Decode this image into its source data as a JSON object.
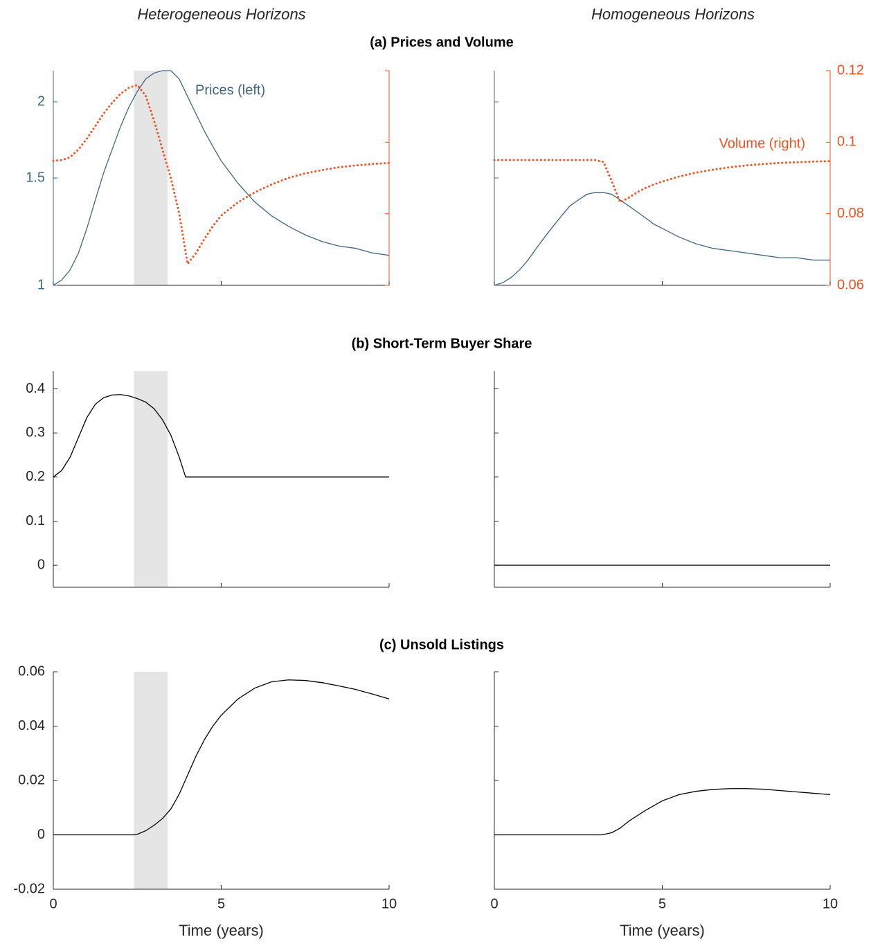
{
  "column_titles": [
    "Heterogeneous Horizons",
    "Homogeneous Horizons"
  ],
  "row_titles": [
    "(a) Prices and Volume",
    "(b) Short-Term Buyer Share",
    "(c) Unsold Listings"
  ],
  "chart_data": [
    {
      "type": "line",
      "annotation": "Prices (left)",
      "yscale": "log",
      "x": [
        0,
        0.25,
        0.5,
        0.75,
        1,
        1.25,
        1.5,
        1.75,
        2,
        2.25,
        2.5,
        2.75,
        3,
        3.25,
        3.5,
        3.75,
        4,
        4.25,
        4.5,
        4.75,
        5,
        5.5,
        6,
        6.5,
        7,
        7.5,
        8,
        8.5,
        9,
        9.5,
        10
      ],
      "series": [
        {
          "name": "Prices",
          "color": "#3d6584",
          "style": "solid",
          "values": [
            1.0,
            1.02,
            1.06,
            1.13,
            1.24,
            1.38,
            1.53,
            1.67,
            1.82,
            1.96,
            2.08,
            2.18,
            2.23,
            2.25,
            2.25,
            2.18,
            2.04,
            1.91,
            1.79,
            1.69,
            1.6,
            1.47,
            1.37,
            1.3,
            1.25,
            1.21,
            1.18,
            1.16,
            1.15,
            1.13,
            1.12
          ]
        },
        {
          "name": "Volume",
          "color": "#f4511e",
          "style": "dotted",
          "axis": "y2",
          "values": [
            0.0948,
            0.095,
            0.0958,
            0.098,
            0.101,
            0.1045,
            0.108,
            0.111,
            0.1135,
            0.1152,
            0.116,
            0.113,
            0.106,
            0.098,
            0.09,
            0.08,
            0.066,
            0.069,
            0.073,
            0.0765,
            0.0795,
            0.0832,
            0.086,
            0.0882,
            0.09,
            0.0913,
            0.0922,
            0.093,
            0.0935,
            0.0939,
            0.0942
          ]
        }
      ],
      "xlim": [
        0,
        10
      ],
      "xticks": [
        0,
        5,
        10
      ],
      "xtick_labels": false,
      "ylim": [
        1,
        2.25
      ],
      "yticks": [
        1,
        1.5,
        2
      ],
      "ytick_labels": true,
      "y2lim": [
        0.06,
        0.12
      ],
      "y2ticks": [
        0.06,
        0.08,
        0.1,
        0.12
      ],
      "y2tick_labels": false,
      "shade": [
        2.4,
        3.4
      ],
      "shade_color": "#e5e5e5"
    },
    {
      "type": "line",
      "annotation": "Volume (right)",
      "yscale": "log",
      "x": [
        0,
        0.25,
        0.5,
        0.75,
        1,
        1.25,
        1.5,
        1.75,
        2,
        2.25,
        2.5,
        2.75,
        3,
        3.25,
        3.5,
        3.75,
        4,
        4.25,
        4.5,
        4.75,
        5,
        5.5,
        6,
        6.5,
        7,
        7.5,
        8,
        8.5,
        9,
        9.5,
        10
      ],
      "series": [
        {
          "name": "Prices",
          "color": "#3d6584",
          "style": "solid",
          "values": [
            1.0,
            1.01,
            1.03,
            1.06,
            1.1,
            1.15,
            1.2,
            1.25,
            1.3,
            1.35,
            1.38,
            1.41,
            1.42,
            1.42,
            1.41,
            1.38,
            1.35,
            1.32,
            1.29,
            1.26,
            1.24,
            1.2,
            1.17,
            1.15,
            1.14,
            1.13,
            1.12,
            1.11,
            1.11,
            1.1,
            1.1
          ]
        },
        {
          "name": "Volume",
          "color": "#f4511e",
          "style": "dotted",
          "axis": "y2",
          "values": [
            0.095,
            0.095,
            0.095,
            0.095,
            0.095,
            0.095,
            0.095,
            0.095,
            0.095,
            0.095,
            0.095,
            0.095,
            0.095,
            0.0945,
            0.089,
            0.0832,
            0.0845,
            0.086,
            0.0872,
            0.0882,
            0.089,
            0.0904,
            0.0915,
            0.0923,
            0.093,
            0.0935,
            0.0939,
            0.0942,
            0.0944,
            0.0946,
            0.0947
          ]
        }
      ],
      "xlim": [
        0,
        10
      ],
      "xticks": [
        0,
        5,
        10
      ],
      "xtick_labels": false,
      "ylim": [
        1,
        2.25
      ],
      "yticks": [
        1,
        1.5,
        2
      ],
      "ytick_labels": false,
      "y2lim": [
        0.06,
        0.12
      ],
      "y2ticks": [
        0.06,
        0.08,
        0.1,
        0.12
      ],
      "y2tick_labels": true
    },
    {
      "type": "line",
      "x": [
        0,
        0.25,
        0.5,
        0.75,
        1,
        1.25,
        1.5,
        1.75,
        2,
        2.25,
        2.5,
        2.75,
        3,
        3.25,
        3.5,
        3.75,
        3.94,
        5,
        10
      ],
      "series": [
        {
          "name": "Short-term buyer share",
          "color": "#000000",
          "style": "solid",
          "values": [
            0.2,
            0.215,
            0.245,
            0.29,
            0.335,
            0.365,
            0.38,
            0.386,
            0.387,
            0.384,
            0.378,
            0.37,
            0.355,
            0.33,
            0.295,
            0.245,
            0.2,
            0.2,
            0.2
          ]
        }
      ],
      "xlim": [
        0,
        10
      ],
      "xticks": [
        0,
        5,
        10
      ],
      "xtick_labels": false,
      "ylim": [
        -0.05,
        0.44
      ],
      "yticks": [
        0,
        0.1,
        0.2,
        0.3,
        0.4
      ],
      "ytick_labels": true,
      "shade": [
        2.4,
        3.4
      ],
      "shade_color": "#e5e5e5"
    },
    {
      "type": "line",
      "x": [
        0,
        10
      ],
      "series": [
        {
          "name": "Short-term buyer share",
          "color": "#000000",
          "style": "solid",
          "values": [
            0,
            0
          ]
        }
      ],
      "xlim": [
        0,
        10
      ],
      "xticks": [
        0,
        5,
        10
      ],
      "xtick_labels": false,
      "ylim": [
        -0.05,
        0.44
      ],
      "yticks": [
        0,
        0.1,
        0.2,
        0.3,
        0.4
      ],
      "ytick_labels": false
    },
    {
      "type": "line",
      "xlabel": "Time (years)",
      "x": [
        0,
        2.4,
        2.5,
        2.75,
        3,
        3.25,
        3.5,
        3.75,
        4,
        4.25,
        4.5,
        4.75,
        5,
        5.5,
        6,
        6.5,
        7,
        7.5,
        8,
        8.5,
        9,
        9.5,
        10
      ],
      "series": [
        {
          "name": "Unsold listings",
          "color": "#000000",
          "style": "solid",
          "values": [
            0,
            0,
            0.0002,
            0.0015,
            0.0035,
            0.006,
            0.0095,
            0.015,
            0.022,
            0.029,
            0.035,
            0.04,
            0.044,
            0.05,
            0.054,
            0.0563,
            0.057,
            0.0568,
            0.056,
            0.0548,
            0.0535,
            0.0518,
            0.05
          ]
        }
      ],
      "xlim": [
        0,
        10
      ],
      "xticks": [
        0,
        5,
        10
      ],
      "xtick_labels": true,
      "ylim": [
        -0.02,
        0.06
      ],
      "yticks": [
        -0.02,
        0,
        0.02,
        0.04,
        0.06
      ],
      "ytick_labels": true,
      "shade": [
        2.4,
        3.4
      ],
      "shade_color": "#e5e5e5"
    },
    {
      "type": "line",
      "xlabel": "Time (years)",
      "x": [
        0,
        3.2,
        3.5,
        3.75,
        4,
        4.5,
        5,
        5.5,
        6,
        6.5,
        7,
        7.5,
        8,
        8.5,
        9,
        9.5,
        10
      ],
      "series": [
        {
          "name": "Unsold listings",
          "color": "#000000",
          "style": "solid",
          "values": [
            0,
            0,
            0.0008,
            0.0025,
            0.005,
            0.009,
            0.0125,
            0.0148,
            0.016,
            0.0167,
            0.017,
            0.017,
            0.0168,
            0.0163,
            0.0158,
            0.0153,
            0.0148
          ]
        }
      ],
      "xlim": [
        0,
        10
      ],
      "xticks": [
        0,
        5,
        10
      ],
      "xtick_labels": true,
      "ylim": [
        -0.02,
        0.06
      ],
      "yticks": [
        -0.02,
        0,
        0.02,
        0.04,
        0.06
      ],
      "ytick_labels": false
    }
  ]
}
